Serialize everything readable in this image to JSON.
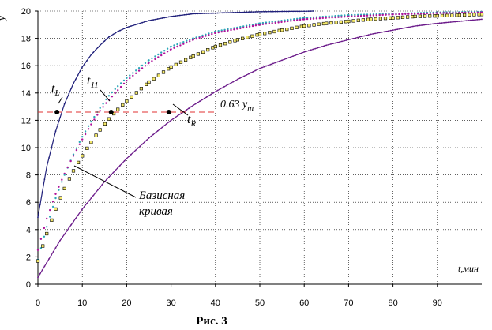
{
  "chart_data": {
    "type": "line",
    "title": "",
    "caption": "Рис. 3",
    "xlabel": "t,мин",
    "ylabel": "y",
    "xlim": [
      0,
      100
    ],
    "ylim": [
      0,
      20
    ],
    "x_ticks": [
      "0",
      "10",
      "20",
      "30",
      "40",
      "50",
      "60",
      "70",
      "80",
      "90"
    ],
    "y_ticks": [
      "0",
      "2",
      "4",
      "6",
      "8",
      "10",
      "12",
      "14",
      "16",
      "18",
      "20"
    ],
    "grid": true,
    "series": [
      {
        "color": "#1f1f7a",
        "style": "solid",
        "x": [
          0,
          2,
          4,
          6,
          8,
          10,
          12,
          14,
          16,
          18,
          20,
          25,
          30,
          35,
          40,
          45,
          50,
          55,
          60,
          62
        ],
        "y": [
          4.9,
          8.6,
          11.2,
          13.2,
          14.7,
          15.9,
          16.8,
          17.5,
          18.1,
          18.5,
          18.8,
          19.3,
          19.6,
          19.8,
          19.85,
          19.9,
          19.95,
          19.97,
          19.98,
          20.0
        ]
      },
      {
        "color": "#2aa8b8",
        "style": "dotted",
        "x": [
          0,
          2,
          4,
          6,
          8,
          10,
          12,
          14,
          16,
          18,
          20,
          25,
          30,
          35,
          40,
          50,
          60,
          70,
          80,
          90,
          100
        ],
        "y": [
          1.8,
          4.2,
          6.3,
          8.0,
          9.5,
          10.8,
          11.9,
          12.9,
          13.8,
          14.5,
          15.1,
          16.4,
          17.4,
          18.0,
          18.5,
          19.1,
          19.5,
          19.7,
          19.8,
          19.9,
          19.95
        ]
      },
      {
        "color": "#b0109a",
        "style": "dotted",
        "x": [
          0,
          2,
          4,
          6,
          8,
          10,
          12,
          14,
          16,
          18,
          20,
          25,
          30,
          35,
          40,
          50,
          60,
          70,
          80,
          90,
          100
        ],
        "y": [
          2.5,
          4.8,
          6.6,
          8.1,
          9.4,
          10.6,
          11.7,
          12.7,
          13.5,
          14.2,
          14.9,
          16.2,
          17.2,
          17.9,
          18.4,
          19.0,
          19.4,
          19.6,
          19.75,
          19.85,
          19.9
        ]
      },
      {
        "color": "#000000",
        "style": "squares",
        "x": [
          0,
          2,
          4,
          6,
          8,
          10,
          12,
          14,
          16,
          18,
          20,
          25,
          30,
          35,
          40,
          45,
          50,
          55,
          60,
          65,
          70,
          75,
          80,
          85,
          90,
          95,
          100
        ],
        "y": [
          1.7,
          3.7,
          5.5,
          7.0,
          8.3,
          9.4,
          10.4,
          11.3,
          12.1,
          12.8,
          13.4,
          14.8,
          15.9,
          16.7,
          17.4,
          17.9,
          18.3,
          18.6,
          18.9,
          19.1,
          19.25,
          19.4,
          19.5,
          19.6,
          19.65,
          19.7,
          19.75
        ]
      },
      {
        "color": "#6b1a8a",
        "style": "solid",
        "x": [
          0,
          5,
          10,
          15,
          20,
          25,
          30,
          35,
          40,
          45,
          50,
          55,
          60,
          65,
          70,
          75,
          80,
          85,
          90,
          95,
          100
        ],
        "y": [
          0.5,
          3.2,
          5.5,
          7.5,
          9.2,
          10.7,
          12.0,
          13.1,
          14.1,
          15.0,
          15.8,
          16.4,
          17.0,
          17.5,
          17.9,
          18.3,
          18.6,
          18.9,
          19.1,
          19.25,
          19.4
        ]
      }
    ],
    "reference_line": {
      "y": 12.6,
      "x_end": 40,
      "color": "#e03030",
      "label": "0.63 y",
      "label_sub": "m"
    },
    "points": [
      {
        "x": 4.3,
        "y": 12.6
      },
      {
        "x": 16.5,
        "y": 12.6
      },
      {
        "x": 29.5,
        "y": 12.6
      }
    ],
    "point_labels": [
      {
        "text": "t",
        "sub": "L"
      },
      {
        "text": "t",
        "sub": "11"
      },
      {
        "text": "t",
        "sub": "R"
      }
    ],
    "annotations": [
      "Базисная",
      "кривая"
    ]
  }
}
